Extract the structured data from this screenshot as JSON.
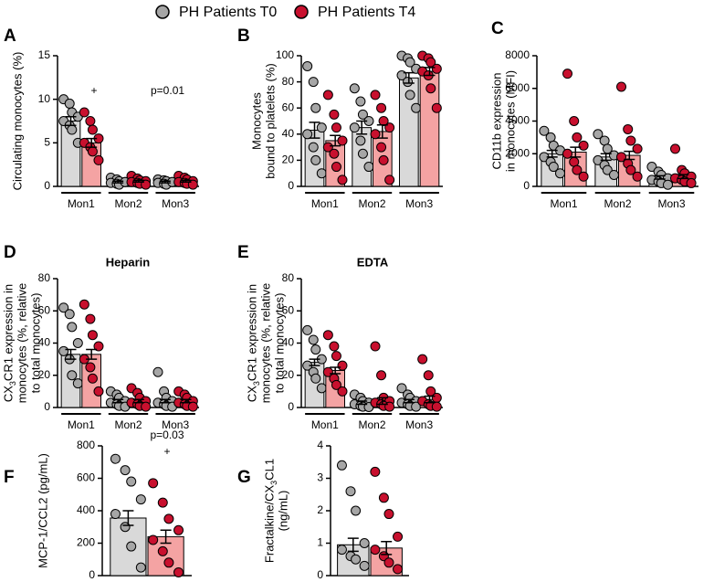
{
  "chart_data": [
    {
      "type": "bar",
      "panel": "A",
      "ylabel": [
        "Circulating monocytes (%)"
      ],
      "categories": [
        "Mon1",
        "Mon2",
        "Mon3"
      ],
      "series": [
        {
          "name": "PH Patients T0",
          "color": "#d9d9d9",
          "point_color": "#a6a6a6",
          "values": [
            7.5,
            0.5,
            0.5
          ],
          "errors": [
            0.5,
            0.1,
            0.1
          ],
          "points": [
            [
              10,
              9.5,
              8.5,
              8,
              7.5,
              7,
              6.5,
              5
            ],
            [
              1,
              0.8,
              0.6,
              0.5,
              0.4,
              0.3,
              0.2,
              0.5
            ],
            [
              0.8,
              0.7,
              0.6,
              0.5,
              0.4,
              0.3,
              0.2,
              0.5
            ]
          ]
        },
        {
          "name": "PH Patients T4",
          "color": "#f4a3a3",
          "point_color": "#c8102e",
          "values": [
            5.0,
            0.6,
            0.6
          ],
          "errors": [
            0.5,
            0.1,
            0.1
          ],
          "points": [
            [
              8.5,
              7.5,
              6.5,
              5.5,
              5,
              4.5,
              4,
              3
            ],
            [
              1.2,
              0.9,
              0.7,
              0.6,
              0.5,
              0.4,
              0.3,
              0.2
            ],
            [
              1.2,
              1,
              0.8,
              0.6,
              0.5,
              0.4,
              0.3,
              0.2
            ]
          ]
        }
      ],
      "ylim": [
        0,
        15
      ],
      "yticks": [
        0,
        5,
        10,
        15
      ],
      "annotations": [
        "+",
        "p=0.01"
      ]
    },
    {
      "type": "bar",
      "panel": "B",
      "ylabel": [
        "Monocytes",
        "bound to platelets (%)"
      ],
      "categories": [
        "Mon1",
        "Mon2",
        "Mon3"
      ],
      "series": [
        {
          "color": "#d9d9d9",
          "point_color": "#a6a6a6",
          "values": [
            43,
            45,
            83
          ],
          "errors": [
            6,
            5,
            4
          ],
          "points": [
            [
              92,
              80,
              60,
              45,
              40,
              30,
              20,
              10
            ],
            [
              75,
              65,
              55,
              50,
              45,
              35,
              25,
              15
            ],
            [
              100,
              98,
              95,
              90,
              85,
              80,
              70,
              60
            ]
          ]
        },
        {
          "color": "#f4a3a3",
          "point_color": "#c8102e",
          "values": [
            35,
            42,
            88
          ],
          "errors": [
            4,
            5,
            3
          ],
          "points": [
            [
              70,
              55,
              45,
              35,
              30,
              25,
              15,
              5
            ],
            [
              70,
              60,
              50,
              45,
              40,
              30,
              20,
              5
            ],
            [
              100,
              98,
              95,
              90,
              88,
              85,
              75,
              60
            ]
          ]
        }
      ],
      "ylim": [
        0,
        100
      ],
      "yticks": [
        0,
        20,
        40,
        60,
        80,
        100
      ]
    },
    {
      "type": "bar",
      "panel": "C",
      "ylabel": [
        "CD11b expression",
        "in monocytes (MFI)"
      ],
      "categories": [
        "Mon1",
        "Mon2",
        "Mon3"
      ],
      "series": [
        {
          "color": "#d9d9d9",
          "point_color": "#a6a6a6",
          "values": [
            2000,
            1800,
            550
          ],
          "errors": [
            200,
            200,
            100
          ],
          "points": [
            [
              3400,
              3000,
              2500,
              2200,
              1800,
              1500,
              1200,
              800
            ],
            [
              3200,
              2800,
              2300,
              1900,
              1600,
              1300,
              1000,
              700
            ],
            [
              1200,
              900,
              700,
              500,
              400,
              300,
              200,
              100
            ]
          ]
        },
        {
          "color": "#f4a3a3",
          "point_color": "#c8102e",
          "values": [
            2100,
            1900,
            600
          ],
          "errors": [
            300,
            250,
            120
          ],
          "points": [
            [
              6900,
              4000,
              3000,
              2500,
              2000,
              1500,
              1000,
              600
            ],
            [
              6100,
              3500,
              2800,
              2300,
              1800,
              1400,
              1000,
              600
            ],
            [
              2300,
              1000,
              800,
              600,
              500,
              400,
              300,
              200
            ]
          ]
        }
      ],
      "ylim": [
        0,
        8000
      ],
      "yticks": [
        0,
        2000,
        4000,
        6000,
        8000
      ]
    },
    {
      "type": "bar",
      "panel": "D",
      "title": "Heparin",
      "ylabel": [
        "CX3CR1 expression in",
        "monocytes (%, relative",
        "to total monocytes)"
      ],
      "categories": [
        "Mon1",
        "Mon2",
        "Mon3"
      ],
      "series": [
        {
          "color": "#d9d9d9",
          "point_color": "#a6a6a6",
          "values": [
            33,
            4,
            4
          ],
          "errors": [
            3,
            1,
            1
          ],
          "points": [
            [
              62,
              58,
              50,
              40,
              35,
              30,
              20,
              15
            ],
            [
              10,
              8,
              6,
              4,
              3,
              2,
              1,
              0.5
            ],
            [
              22,
              10,
              6,
              4,
              3,
              2,
              1,
              0.5
            ]
          ]
        },
        {
          "color": "#f4a3a3",
          "point_color": "#c8102e",
          "values": [
            33,
            4,
            4
          ],
          "errors": [
            3,
            1,
            1
          ],
          "points": [
            [
              64,
              55,
              45,
              38,
              30,
              25,
              18,
              10
            ],
            [
              12,
              9,
              6,
              4,
              3,
              2,
              1,
              0.5
            ],
            [
              10,
              8,
              6,
              4,
              3,
              2,
              1,
              0.5
            ]
          ]
        }
      ],
      "ylim": [
        0,
        80
      ],
      "yticks": [
        0,
        20,
        40,
        60,
        80
      ]
    },
    {
      "type": "bar",
      "panel": "E",
      "title": "EDTA",
      "ylabel": [
        "CX3CR1 expression in",
        "monocytes (%, relative",
        "to total monocytes)"
      ],
      "categories": [
        "Mon1",
        "Mon2",
        "Mon3"
      ],
      "series": [
        {
          "color": "#d9d9d9",
          "point_color": "#a6a6a6",
          "values": [
            28,
            3,
            4
          ],
          "errors": [
            2,
            1,
            1
          ],
          "points": [
            [
              48,
              42,
              36,
              30,
              26,
              22,
              18,
              12
            ],
            [
              8,
              6,
              4,
              3,
              2,
              1,
              0.5,
              0.3
            ],
            [
              12,
              8,
              6,
              4,
              3,
              2,
              1,
              0.5
            ]
          ]
        },
        {
          "color": "#f4a3a3",
          "point_color": "#c8102e",
          "values": [
            23,
            4,
            5
          ],
          "errors": [
            2,
            2,
            2
          ],
          "points": [
            [
              45,
              38,
              32,
              26,
              22,
              18,
              14,
              10
            ],
            [
              38,
              20,
              6,
              4,
              3,
              2,
              1,
              0.5
            ],
            [
              30,
              20,
              10,
              6,
              4,
              2,
              1,
              0.5
            ]
          ]
        }
      ],
      "ylim": [
        0,
        80
      ],
      "yticks": [
        0,
        20,
        40,
        60,
        80
      ]
    },
    {
      "type": "bar",
      "panel": "F",
      "ylabel": [
        "MCP-1/CCL2 (pg/mL)"
      ],
      "series": [
        {
          "color": "#d9d9d9",
          "point_color": "#a6a6a6",
          "values": [
            355
          ],
          "errors": [
            45
          ],
          "points": [
            [
              720,
              650,
              580,
              470,
              380,
              300,
              180,
              50
            ]
          ]
        },
        {
          "color": "#f4a3a3",
          "point_color": "#c8102e",
          "values": [
            240
          ],
          "errors": [
            40
          ],
          "points": [
            [
              570,
              450,
              350,
              280,
              220,
              150,
              80,
              20
            ]
          ]
        }
      ],
      "ylim": [
        0,
        800
      ],
      "yticks": [
        0,
        200,
        400,
        600,
        800
      ],
      "annotations": [
        "p=0.03",
        "+"
      ]
    },
    {
      "type": "bar",
      "panel": "G",
      "ylabel": [
        "Fractalkine/CX3CL1",
        "(ng/mL)"
      ],
      "series": [
        {
          "color": "#d9d9d9",
          "point_color": "#a6a6a6",
          "values": [
            0.95
          ],
          "errors": [
            0.2
          ],
          "points": [
            [
              3.4,
              2.6,
              2.0,
              1.0,
              0.8,
              0.6,
              0.5,
              0.3
            ]
          ]
        },
        {
          "color": "#f4a3a3",
          "point_color": "#c8102e",
          "values": [
            0.85
          ],
          "errors": [
            0.2
          ],
          "points": [
            [
              3.2,
              2.4,
              1.9,
              1.2,
              0.8,
              0.6,
              0.4,
              0.2
            ]
          ]
        }
      ],
      "ylim": [
        0,
        4
      ],
      "yticks": [
        0,
        1,
        2,
        3,
        4
      ]
    }
  ]
}
